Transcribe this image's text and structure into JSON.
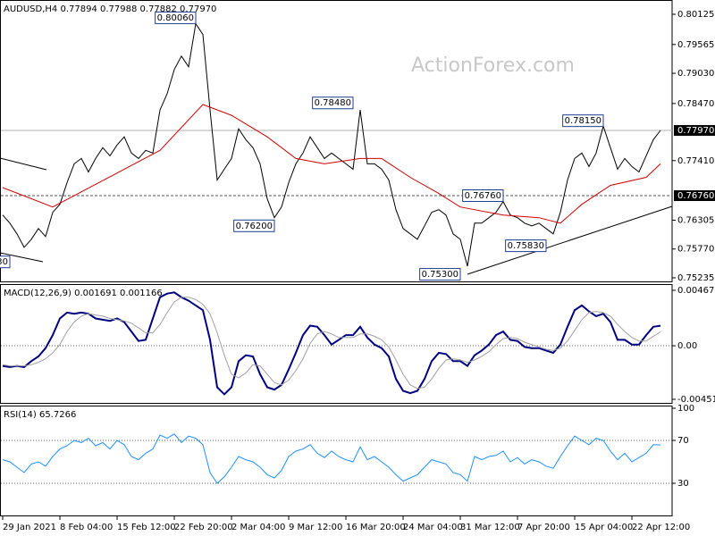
{
  "watermark": "ActionForex.com",
  "chart_data": [
    {
      "type": "line",
      "title": "AUDUSD,H4  0.77894 0.77988 0.77882 0.77970",
      "xlim": [
        0,
        93
      ],
      "ylim": [
        0.75235,
        0.80125
      ],
      "yticks": [
        0.80125,
        0.79565,
        {
          "value": 0.7903,
          "label": "0.79030"
        },
        {
          "value": 0.7847,
          "label": "0.78470"
        },
        {
          "value": 0.7741,
          "label": "0.77410"
        },
        0.76305,
        {
          "value": 0.7577,
          "label": "0.75770"
        },
        0.75235
      ],
      "levels": [
        {
          "value": 0.7797,
          "label": "0.77970",
          "style": "solid"
        },
        {
          "value": 0.7676,
          "label": "0.76760",
          "style": "dashed"
        }
      ],
      "series": [
        {
          "color": "#000000",
          "values": [
            0.764,
            0.7625,
            0.7605,
            0.758,
            0.7595,
            0.7615,
            0.76,
            0.7645,
            0.766,
            0.77,
            0.7735,
            0.7745,
            0.772,
            0.7745,
            0.7765,
            0.775,
            0.777,
            0.7785,
            0.7755,
            0.7745,
            0.776,
            0.7755,
            0.7835,
            0.7865,
            0.791,
            0.7935,
            0.7915,
            0.7995,
            0.7975,
            0.7835,
            0.7705,
            0.7725,
            0.7745,
            0.78,
            0.778,
            0.7765,
            0.7735,
            0.767,
            0.7635,
            0.7655,
            0.77,
            0.7735,
            0.7755,
            0.7785,
            0.7765,
            0.7745,
            0.7755,
            0.7745,
            0.7735,
            0.7725,
            0.7835,
            0.7735,
            0.7735,
            0.7725,
            0.7705,
            0.765,
            0.7615,
            0.7605,
            0.7595,
            0.762,
            0.7645,
            0.765,
            0.764,
            0.7605,
            0.7595,
            0.7545,
            0.7625,
            0.7625,
            0.7635,
            0.7645,
            0.7665,
            0.764,
            0.7635,
            0.7625,
            0.762,
            0.7625,
            0.7615,
            0.7605,
            0.7645,
            0.7705,
            0.7745,
            0.7755,
            0.773,
            0.7755,
            0.7805,
            0.7765,
            0.7725,
            0.7745,
            0.773,
            0.772,
            0.775,
            0.778,
            0.7797
          ]
        },
        {
          "color": "#d00000",
          "x": [
            0,
            7,
            12,
            18,
            22,
            28,
            32,
            37,
            41,
            45,
            50,
            53,
            57,
            61,
            64,
            70,
            75,
            78,
            81,
            85,
            90,
            92
          ],
          "values": [
            0.7691,
            0.7655,
            0.769,
            0.7732,
            0.776,
            0.7845,
            0.7825,
            0.7785,
            0.7745,
            0.7735,
            0.7745,
            0.7745,
            0.771,
            0.768,
            0.7655,
            0.764,
            0.7635,
            0.7625,
            0.766,
            0.7695,
            0.771,
            0.7735
          ]
        }
      ],
      "annotations": [
        {
          "label": "30",
          "value": 0.7553,
          "x": 1
        },
        {
          "label": "0.80060",
          "value": 0.8006,
          "x": 27
        },
        {
          "label": "0.78480",
          "value": 0.7848,
          "x": 49
        },
        {
          "label": "0.76200",
          "value": 0.762,
          "x": 38
        },
        {
          "label": "0.76760",
          "value": 0.7676,
          "x": 70
        },
        {
          "label": "0.75830",
          "value": 0.7583,
          "x": 76
        },
        {
          "label": "0.75300",
          "value": 0.753,
          "x": 64
        },
        {
          "label": "0.78150",
          "value": 0.7815,
          "x": 84
        }
      ]
    },
    {
      "type": "line",
      "title": "MACD(12,26,9) 0.001691 0.001166",
      "xlim": [
        0,
        93
      ],
      "ylim": [
        -0.004519,
        0.004677
      ],
      "yticks": [
        0.004677,
        {
          "value": 0,
          "label": "0.00"
        },
        -0.004519
      ],
      "levels": [
        0
      ],
      "series": [
        {
          "color": "#000080",
          "values": [
            -0.0017,
            -0.0018,
            -0.0017,
            -0.0018,
            -0.0013,
            -0.0009,
            -0.0002,
            0.0009,
            0.0023,
            0.0028,
            0.0027,
            0.0028,
            0.0027,
            0.0023,
            0.0022,
            0.0021,
            0.0023,
            0.002,
            0.0012,
            0.0004,
            0.0005,
            0.0023,
            0.0041,
            0.0044,
            0.0045,
            0.0041,
            0.0038,
            0.0034,
            0.003,
            0.0005,
            -0.0035,
            -0.0041,
            -0.0035,
            -0.0013,
            -0.0008,
            -0.0009,
            -0.0024,
            -0.0035,
            -0.0037,
            -0.0033,
            -0.002,
            -0.0006,
            0.0009,
            0.0017,
            0.0016,
            0.0009,
            0.0001,
            0.0005,
            0.0009,
            0.0009,
            0.0016,
            0.0007,
            0.0001,
            -0.0002,
            -0.0009,
            -0.0028,
            -0.0038,
            -0.004,
            -0.0038,
            -0.0028,
            -0.0013,
            -0.0006,
            -0.0007,
            -0.0013,
            -0.0013,
            -0.0017,
            -0.0008,
            -0.0004,
            0.0001,
            0.0009,
            0.0012,
            0.0005,
            0.0004,
            -0.0001,
            -0.0002,
            -0.0002,
            -0.0004,
            -0.0006,
            0.0001,
            0.0016,
            0.003,
            0.0034,
            0.0029,
            0.0025,
            0.0027,
            0.002,
            0.0005,
            0.0005,
            0.0001,
            0.0001,
            0.0009,
            0.0016,
            0.001691
          ]
        },
        {
          "color": "#a0a0a0",
          "values": [
            -0.0016,
            -0.0017,
            -0.0017,
            -0.0017,
            -0.0016,
            -0.0014,
            -0.0011,
            -0.0006,
            0.0001,
            0.0012,
            0.002,
            0.0025,
            0.0027,
            0.0026,
            0.0025,
            0.0023,
            0.0022,
            0.0021,
            0.0019,
            0.0015,
            0.0011,
            0.0011,
            0.0018,
            0.0028,
            0.0037,
            0.0041,
            0.0041,
            0.0039,
            0.0035,
            0.0027,
            0.0011,
            -0.0008,
            -0.0024,
            -0.0027,
            -0.0023,
            -0.0016,
            -0.0017,
            -0.0024,
            -0.0031,
            -0.0033,
            -0.0029,
            -0.0021,
            -0.0011,
            0.0002,
            0.001,
            0.0012,
            0.001,
            0.0007,
            0.0007,
            0.0007,
            0.001,
            0.001,
            0.0008,
            0.0005,
            -0.0001,
            -0.0012,
            -0.0024,
            -0.0033,
            -0.0036,
            -0.0035,
            -0.0028,
            -0.0019,
            -0.0012,
            -0.0011,
            -0.0012,
            -0.0014,
            -0.0012,
            -0.0009,
            -0.0005,
            0.0001,
            0.0006,
            0.0007,
            0.0006,
            0.0003,
            0.0001,
            -0.0001,
            -0.0003,
            -0.0004,
            -0.0002,
            0.0004,
            0.0013,
            0.0022,
            0.0028,
            0.0029,
            0.0028,
            0.0025,
            0.0018,
            0.0012,
            0.0007,
            0.0004,
            0.0004,
            0.0008,
            0.001166
          ]
        }
      ]
    },
    {
      "type": "line",
      "title": "RSI(14) 65.7266",
      "xlim": [
        0,
        93
      ],
      "ylim": [
        0,
        100
      ],
      "yticks": [
        100,
        70,
        30
      ],
      "levels": [
        70,
        30
      ],
      "xticks": [
        {
          "value": 0,
          "label": "29 Jan 2021"
        },
        {
          "value": 8,
          "label": "8 Feb 04:00"
        },
        {
          "value": 16,
          "label": "15 Feb 12:00"
        },
        {
          "value": 24,
          "label": "22 Feb 20:00"
        },
        {
          "value": 32,
          "label": "2 Mar 04:00"
        },
        {
          "value": 40,
          "label": "9 Mar 12:00"
        },
        {
          "value": 48,
          "label": "16 Mar 20:00"
        },
        {
          "value": 56,
          "label": "24 Mar 04:00"
        },
        {
          "value": 64,
          "label": "31 Mar 12:00"
        },
        {
          "value": 72,
          "label": "7 Apr 20:00"
        },
        {
          "value": 80,
          "label": "15 Apr 04:00"
        },
        {
          "value": 88,
          "label": "22 Apr 12:00"
        }
      ],
      "series": [
        {
          "color": "#1e90ff",
          "values": [
            52,
            50,
            45,
            40,
            48,
            50,
            46,
            55,
            62,
            65,
            70,
            68,
            72,
            65,
            68,
            62,
            70,
            66,
            55,
            52,
            58,
            62,
            75,
            72,
            76,
            68,
            74,
            72,
            66,
            40,
            30,
            36,
            45,
            55,
            52,
            50,
            45,
            38,
            35,
            42,
            55,
            60,
            62,
            66,
            58,
            54,
            60,
            55,
            52,
            50,
            64,
            52,
            55,
            50,
            45,
            38,
            32,
            35,
            38,
            45,
            52,
            50,
            48,
            40,
            38,
            32,
            55,
            52,
            55,
            56,
            60,
            50,
            54,
            48,
            52,
            50,
            46,
            44,
            55,
            65,
            74,
            70,
            66,
            72,
            70,
            60,
            52,
            58,
            50,
            54,
            58,
            66,
            65.7266
          ]
        }
      ]
    }
  ]
}
